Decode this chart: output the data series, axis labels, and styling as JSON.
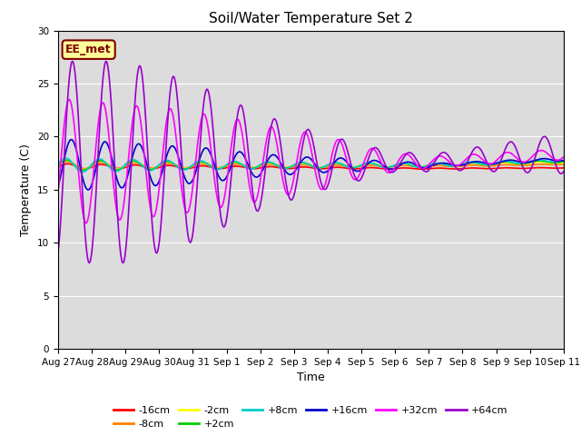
{
  "title": "Soil/Water Temperature Set 2",
  "xlabel": "Time",
  "ylabel": "Temperature (C)",
  "ylim": [
    0,
    30
  ],
  "yticks": [
    0,
    5,
    10,
    15,
    20,
    25,
    30
  ],
  "background_color": "#dcdcdc",
  "annotation_text": "EE_met",
  "annotation_bg": "#ffff99",
  "annotation_border": "#800000",
  "series": {
    "-16cm": {
      "color": "#ff0000",
      "lw": 1.2
    },
    "-8cm": {
      "color": "#ff8000",
      "lw": 1.2
    },
    "-2cm": {
      "color": "#ffff00",
      "lw": 1.2
    },
    "+2cm": {
      "color": "#00cc00",
      "lw": 1.2
    },
    "+8cm": {
      "color": "#00cccc",
      "lw": 1.2
    },
    "+16cm": {
      "color": "#0000cc",
      "lw": 1.2
    },
    "+32cm": {
      "color": "#ff00ff",
      "lw": 1.2
    },
    "+64cm": {
      "color": "#9900cc",
      "lw": 1.2
    }
  },
  "base_temp": 17.3,
  "tick_labels": [
    "Aug 27",
    "Aug 28",
    "Aug 29",
    "Aug 30",
    "Aug 31",
    "Sep 1",
    "Sep 2",
    "Sep 3",
    "Sep 4",
    "Sep 5",
    "Sep 6",
    "Sep 7",
    "Sep 8",
    "Sep 9",
    "Sep 10",
    "Sep 11"
  ],
  "tick_positions": [
    0,
    1,
    2,
    3,
    4,
    5,
    6,
    7,
    8,
    9,
    10,
    11,
    12,
    13,
    14,
    15
  ]
}
